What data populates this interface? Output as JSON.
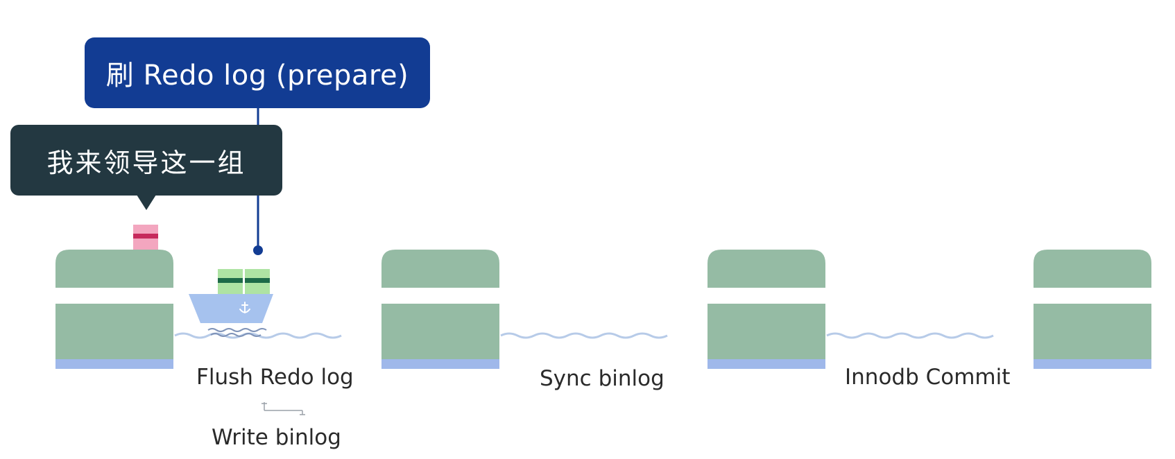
{
  "callouts": {
    "leader_label": "刷 Redo log (prepare)",
    "speech_label": "我来领导这一组"
  },
  "stages": [
    {
      "label": "Flush Redo log",
      "sublabel": "Write binlog"
    },
    {
      "label": "Sync binlog"
    },
    {
      "label": "Innodb Commit"
    }
  ],
  "colors": {
    "dock_green": "#95bba4",
    "dock_base": "#9fb8ea",
    "leader_blue": "#123c93",
    "speech_dark": "#233841",
    "cargo_green": "#aee3a3",
    "cargo_stripe": "#1d6a48",
    "cargo_pink": "#f3a6bf",
    "cargo_pink_stripe": "#c62a5c",
    "boat_hull": "#a6c2ee",
    "wave": "#b7cbe8"
  }
}
